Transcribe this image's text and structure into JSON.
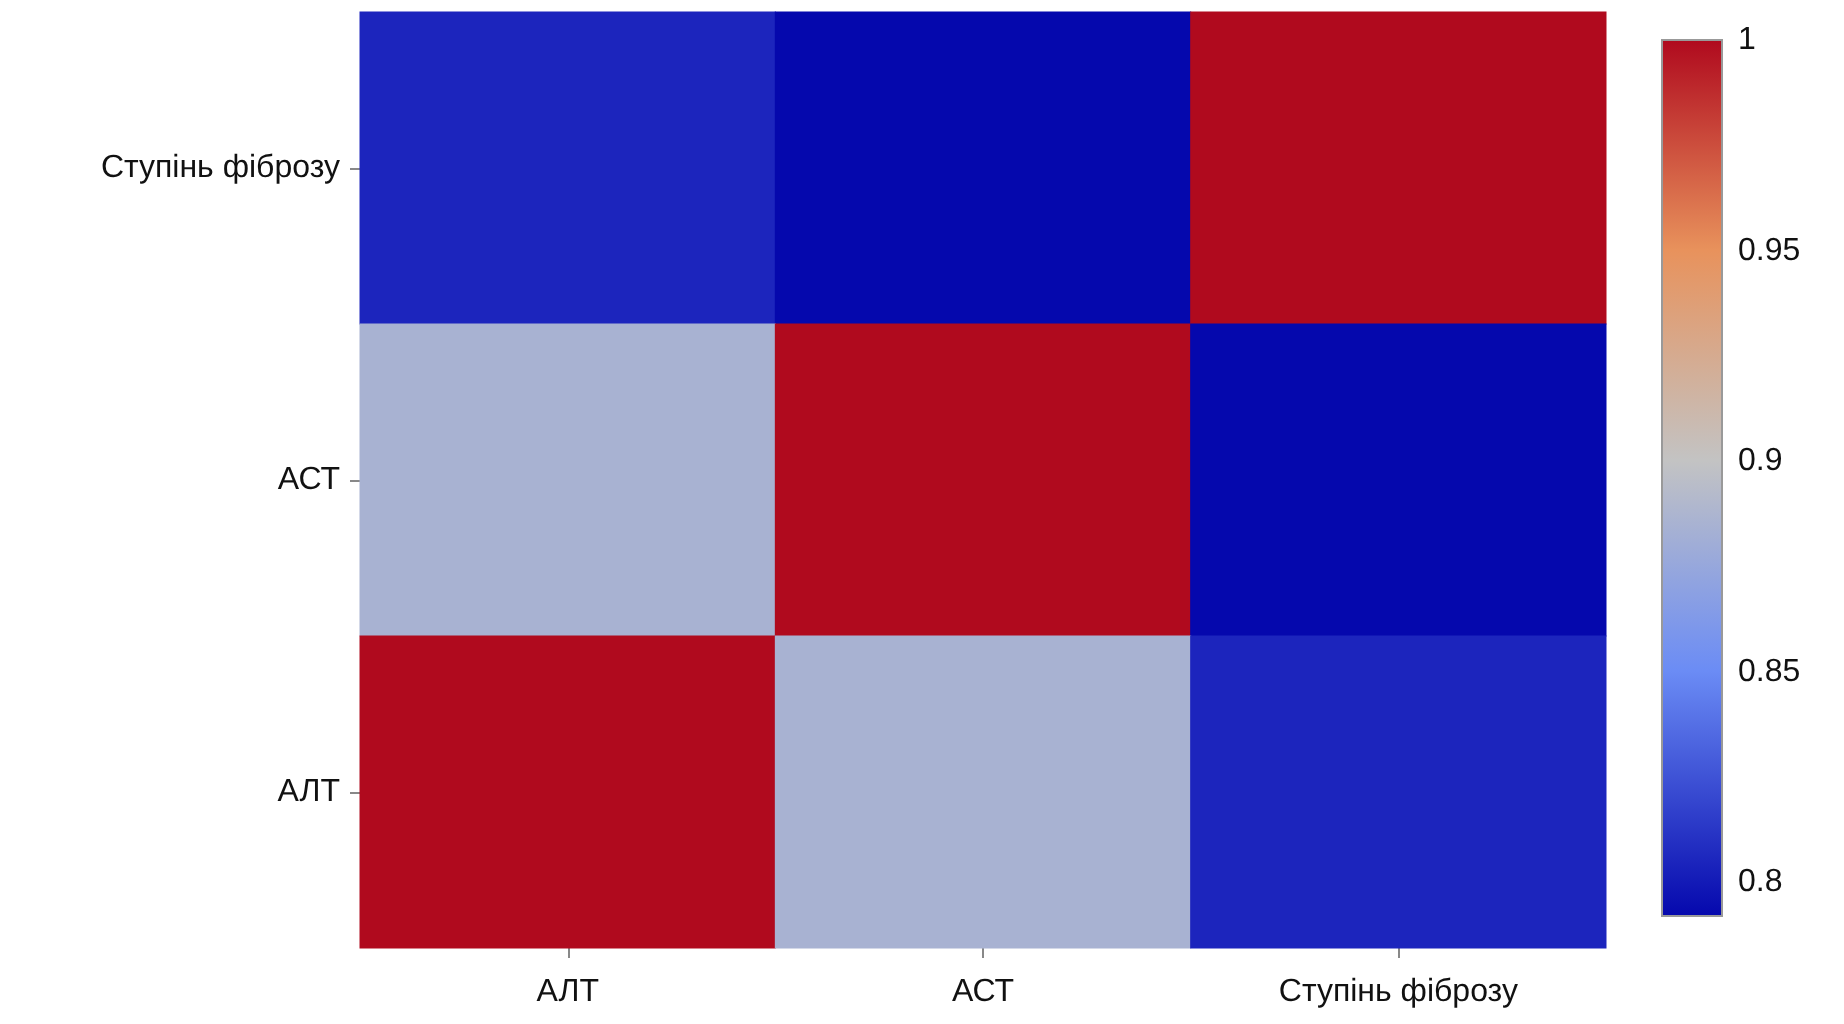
{
  "chart_data": {
    "type": "heatmap",
    "categories": [
      "АЛТ",
      "АСТ",
      "Ступінь фіброзу"
    ],
    "y_categories": [
      "Ступінь фіброзу",
      "АСТ",
      "АЛТ"
    ],
    "cells": [
      [
        0.805,
        0.792,
        1
      ],
      [
        0.885,
        1,
        0.792
      ],
      [
        1,
        0.885,
        0.805
      ]
    ],
    "clim": [
      0.792,
      1
    ],
    "cticks": [
      0.8,
      0.85,
      0.9,
      0.95,
      1
    ]
  }
}
